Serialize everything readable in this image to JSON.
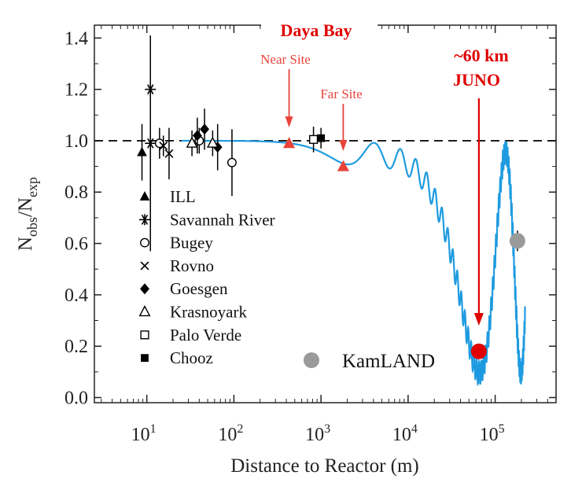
{
  "chart_data": {
    "type": "scatter",
    "xlabel": "Distance to Reactor (m)",
    "ylabel": "N",
    "ylabel_sub_obs": "obs",
    "ylabel_sep": "/N",
    "ylabel_sub_exp": "exp",
    "x_scale": "log",
    "xlim": [
      2.5,
      500000
    ],
    "ylim": [
      -0.02,
      1.45
    ],
    "x_ticks": [
      {
        "value": 10,
        "base": "10",
        "exp": "1"
      },
      {
        "value": 100,
        "base": "10",
        "exp": "2"
      },
      {
        "value": 1000,
        "base": "10",
        "exp": "3"
      },
      {
        "value": 10000,
        "base": "10",
        "exp": "4"
      },
      {
        "value": 100000,
        "base": "10",
        "exp": "5"
      }
    ],
    "y_ticks": [
      {
        "value": 0.0,
        "label": "0.0"
      },
      {
        "value": 0.2,
        "label": "0.2"
      },
      {
        "value": 0.4,
        "label": "0.4"
      },
      {
        "value": 0.6,
        "label": "0.6"
      },
      {
        "value": 0.8,
        "label": "0.8"
      },
      {
        "value": 1.0,
        "label": "1.0"
      },
      {
        "value": 1.2,
        "label": "1.2"
      },
      {
        "value": 1.4,
        "label": "1.4"
      }
    ],
    "reference_line": 1.0,
    "legend": [
      {
        "label": "ILL",
        "marker": "triangle-filled"
      },
      {
        "label": "Savannah River",
        "marker": "asterisk"
      },
      {
        "label": "Bugey",
        "marker": "circle-open"
      },
      {
        "label": "Rovno",
        "marker": "cross"
      },
      {
        "label": "Goesgen",
        "marker": "diamond-filled"
      },
      {
        "label": "Krasnoyark",
        "marker": "triangle-open"
      },
      {
        "label": "Palo Verde",
        "marker": "square-open"
      },
      {
        "label": "Chooz",
        "marker": "square-filled"
      }
    ],
    "kamland_label": "KamLAND",
    "series": [
      {
        "name": "ILL",
        "marker": "triangle-filled",
        "points": [
          {
            "x": 8.8,
            "y": 0.955,
            "err": 0.11
          }
        ]
      },
      {
        "name": "Savannah River",
        "marker": "asterisk",
        "points": [
          {
            "x": 11,
            "y": 1.2,
            "err": 0.0
          },
          {
            "x": 11,
            "y": 0.99,
            "err": 0.42
          }
        ]
      },
      {
        "name": "Bugey",
        "marker": "circle-open",
        "points": [
          {
            "x": 14,
            "y": 0.99,
            "err": 0.06
          },
          {
            "x": 40,
            "y": 1.0,
            "err": 0.05
          },
          {
            "x": 95,
            "y": 0.915,
            "err": 0.13
          }
        ]
      },
      {
        "name": "Rovno",
        "marker": "cross",
        "points": [
          {
            "x": 15.5,
            "y": 0.98,
            "err": 0.04
          },
          {
            "x": 18,
            "y": 0.95,
            "err": 0.1
          }
        ]
      },
      {
        "name": "Goesgen",
        "marker": "diamond-filled",
        "points": [
          {
            "x": 38,
            "y": 1.02,
            "err": 0.07
          },
          {
            "x": 46,
            "y": 1.045,
            "err": 0.08
          },
          {
            "x": 65,
            "y": 0.975,
            "err": 0.09
          }
        ]
      },
      {
        "name": "Krasnoyark",
        "marker": "triangle-open",
        "points": [
          {
            "x": 33,
            "y": 0.99,
            "err": 0.05
          },
          {
            "x": 57,
            "y": 0.99,
            "err": 0.05
          }
        ]
      },
      {
        "name": "Palo Verde",
        "marker": "square-open",
        "points": [
          {
            "x": 820,
            "y": 1.005,
            "err": 0.05
          }
        ]
      },
      {
        "name": "Chooz",
        "marker": "square-filled",
        "points": [
          {
            "x": 1000,
            "y": 1.01,
            "err": 0.04
          }
        ]
      },
      {
        "name": "KamLAND",
        "marker": "circle-gray",
        "points": [
          {
            "x": 180000,
            "y": 0.61,
            "err": 0.04
          }
        ]
      },
      {
        "name": "Daya Bay",
        "marker": "triangle-red",
        "points": [
          {
            "x": 430,
            "y": 0.99
          },
          {
            "x": 1800,
            "y": 0.9
          }
        ]
      },
      {
        "name": "JUNO",
        "marker": "circle-red",
        "points": [
          {
            "x": 65000,
            "y": 0.18
          }
        ]
      }
    ],
    "oscillation_curve": {
      "color": "#1e9be0",
      "sin2_2theta13": 0.09,
      "sin2_2theta12": 0.86,
      "dm2_31": 0.00243,
      "dm2_21": 7.53e-05,
      "energy_mev": 4.0,
      "x_range": [
        25,
        220000
      ]
    },
    "annotations": {
      "daya_bay": "Daya Bay",
      "near_site": "Near Site",
      "far_site": "Far Site",
      "juno_distance": "~60 km",
      "juno_name": "JUNO"
    },
    "colors": {
      "axis": "#222222",
      "red": "#e8443a",
      "bright_red": "#e00000",
      "gray": "#9a9a9a",
      "curve": "#1e9be0"
    }
  }
}
